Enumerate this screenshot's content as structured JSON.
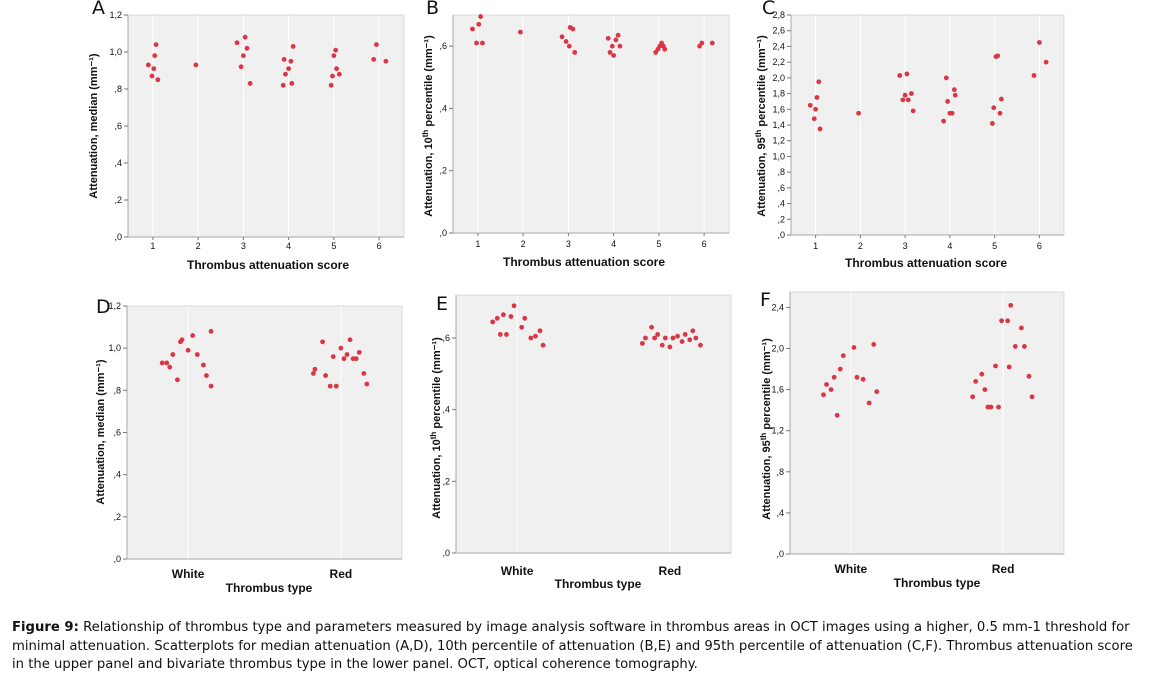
{
  "caption": {
    "label": "Figure 9:",
    "text": "Relationship of thrombus type and parameters measured by image analysis software in thrombus areas in OCT images using a higher, 0.5 mm-1 threshold for minimal attenuation. Scatterplots for median attenuation (A,D), 10th percentile of attenuation (B,E) and 95th percentile of attenuation (C,F). Thrombus attenuation score in the upper panel and bivariate thrombus type in the lower panel. OCT, optical coherence tomography."
  },
  "colors": {
    "point": "#dc3545",
    "plot_bg": "#f0f0f0",
    "axis": "#777777"
  },
  "chart_data": [
    {
      "panel": "A",
      "type": "scatter",
      "ylabel": "Attenuation, median (mm⁻¹)",
      "xlabel": "Thrombus attenuation score",
      "xcategories": [
        "1",
        "2",
        "3",
        "4",
        "5",
        "6"
      ],
      "xlim": [
        0.45,
        6.55
      ],
      "ylim": [
        0,
        1.2
      ],
      "yticks": [
        0,
        0.2,
        0.4,
        0.6,
        0.8,
        1.0,
        1.2
      ],
      "ytick_labels": [
        ",0",
        ",2",
        ",4",
        ",6",
        ",8",
        "1,0",
        "1,2"
      ],
      "points": [
        [
          0.9,
          0.93
        ],
        [
          0.98,
          0.87
        ],
        [
          1.02,
          0.91
        ],
        [
          1.04,
          0.98
        ],
        [
          1.07,
          1.04
        ],
        [
          1.11,
          0.85
        ],
        [
          1.95,
          0.93
        ],
        [
          2.86,
          1.05
        ],
        [
          2.95,
          0.92
        ],
        [
          3.0,
          0.98
        ],
        [
          3.04,
          1.08
        ],
        [
          3.08,
          1.02
        ],
        [
          3.15,
          0.83
        ],
        [
          3.88,
          0.82
        ],
        [
          3.9,
          0.96
        ],
        [
          3.93,
          0.88
        ],
        [
          4.0,
          0.91
        ],
        [
          4.05,
          0.95
        ],
        [
          4.07,
          0.83
        ],
        [
          4.1,
          1.03
        ],
        [
          4.94,
          0.82
        ],
        [
          4.97,
          0.87
        ],
        [
          5.0,
          0.98
        ],
        [
          5.04,
          1.01
        ],
        [
          5.06,
          0.91
        ],
        [
          5.12,
          0.88
        ],
        [
          5.88,
          0.96
        ],
        [
          5.94,
          1.04
        ],
        [
          6.15,
          0.95
        ]
      ]
    },
    {
      "panel": "B",
      "type": "scatter",
      "ylabel": "Attenuation, 10th percentile (mm⁻¹)",
      "xlabel": "Thrombus attenuation score",
      "xcategories": [
        "1",
        "2",
        "3",
        "4",
        "5",
        "6"
      ],
      "xlim": [
        0.45,
        6.55
      ],
      "ylim": [
        0,
        0.7
      ],
      "yticks": [
        0,
        0.2,
        0.4,
        0.6
      ],
      "ytick_labels": [
        ",0",
        ",2",
        ",4",
        ",6"
      ],
      "points": [
        [
          0.88,
          0.655
        ],
        [
          0.97,
          0.61
        ],
        [
          1.02,
          0.67
        ],
        [
          1.06,
          0.695
        ],
        [
          1.1,
          0.61
        ],
        [
          1.94,
          0.645
        ],
        [
          2.86,
          0.63
        ],
        [
          2.95,
          0.615
        ],
        [
          3.02,
          0.6
        ],
        [
          3.04,
          0.66
        ],
        [
          3.1,
          0.655
        ],
        [
          3.14,
          0.58
        ],
        [
          3.88,
          0.625
        ],
        [
          3.92,
          0.58
        ],
        [
          3.97,
          0.6
        ],
        [
          4.0,
          0.57
        ],
        [
          4.05,
          0.62
        ],
        [
          4.1,
          0.635
        ],
        [
          4.14,
          0.6
        ],
        [
          4.93,
          0.58
        ],
        [
          4.98,
          0.59
        ],
        [
          5.02,
          0.6
        ],
        [
          5.06,
          0.61
        ],
        [
          5.1,
          0.6
        ],
        [
          5.13,
          0.59
        ],
        [
          5.9,
          0.6
        ],
        [
          5.95,
          0.61
        ],
        [
          6.18,
          0.61
        ]
      ]
    },
    {
      "panel": "C",
      "type": "scatter",
      "ylabel": "Attenuation, 95th percentile (mm⁻¹)",
      "xlabel": "Thrombus attenuation score",
      "xcategories": [
        "1",
        "2",
        "3",
        "4",
        "5",
        "6"
      ],
      "xlim": [
        0.45,
        6.55
      ],
      "ylim": [
        0,
        2.8
      ],
      "yticks": [
        0,
        0.2,
        0.4,
        0.6,
        0.8,
        1.0,
        1.2,
        1.4,
        1.6,
        1.8,
        2.0,
        2.2,
        2.4,
        2.6,
        2.8
      ],
      "ytick_labels": [
        ",0",
        ",2",
        ",4",
        ",6",
        ",8",
        "1,0",
        "1,2",
        "1,4",
        "1,6",
        "1,8",
        "2,0",
        "2,2",
        "2,4",
        "2,6",
        "2,8"
      ],
      "points": [
        [
          0.88,
          1.65
        ],
        [
          0.97,
          1.48
        ],
        [
          1.0,
          1.6
        ],
        [
          1.03,
          1.75
        ],
        [
          1.07,
          1.95
        ],
        [
          1.1,
          1.35
        ],
        [
          1.96,
          1.55
        ],
        [
          2.88,
          2.03
        ],
        [
          2.95,
          1.72
        ],
        [
          3.0,
          1.78
        ],
        [
          3.04,
          2.05
        ],
        [
          3.07,
          1.72
        ],
        [
          3.14,
          1.8
        ],
        [
          3.18,
          1.58
        ],
        [
          3.86,
          1.45
        ],
        [
          3.92,
          2.0
        ],
        [
          3.95,
          1.7
        ],
        [
          4.0,
          1.55
        ],
        [
          4.05,
          1.55
        ],
        [
          4.1,
          1.85
        ],
        [
          4.12,
          1.78
        ],
        [
          4.95,
          1.42
        ],
        [
          4.98,
          1.62
        ],
        [
          5.03,
          2.27
        ],
        [
          5.07,
          2.28
        ],
        [
          5.12,
          1.55
        ],
        [
          5.15,
          1.73
        ],
        [
          5.88,
          2.03
        ],
        [
          6.0,
          2.45
        ],
        [
          6.15,
          2.2
        ]
      ]
    },
    {
      "panel": "D",
      "type": "scatter",
      "ylabel": "Attenuation, median (mm⁻¹)",
      "xlabel": "Thrombus type",
      "xcategories": [
        "White",
        "Red"
      ],
      "xlim": [
        0.6,
        2.4
      ],
      "ylim": [
        0,
        1.2
      ],
      "yticks": [
        0,
        0.2,
        0.4,
        0.6,
        0.8,
        1.0,
        1.2
      ],
      "ytick_labels": [
        ",0",
        ",2",
        ",4",
        ",6",
        ",8",
        "1,0",
        "1,2"
      ],
      "points": [
        [
          0.83,
          0.93
        ],
        [
          0.86,
          0.93
        ],
        [
          0.88,
          0.91
        ],
        [
          0.9,
          0.97
        ],
        [
          0.93,
          0.85
        ],
        [
          0.95,
          1.03
        ],
        [
          0.96,
          1.04
        ],
        [
          1.0,
          0.99
        ],
        [
          1.03,
          1.06
        ],
        [
          1.06,
          0.97
        ],
        [
          1.1,
          0.92
        ],
        [
          1.12,
          0.87
        ],
        [
          1.15,
          0.82
        ],
        [
          1.15,
          1.08
        ],
        [
          1.82,
          0.88
        ],
        [
          1.83,
          0.9
        ],
        [
          1.88,
          1.03
        ],
        [
          1.9,
          0.87
        ],
        [
          1.93,
          0.82
        ],
        [
          1.95,
          0.96
        ],
        [
          1.97,
          0.82
        ],
        [
          2.0,
          1.0
        ],
        [
          2.02,
          0.95
        ],
        [
          2.04,
          0.97
        ],
        [
          2.06,
          1.04
        ],
        [
          2.08,
          0.95
        ],
        [
          2.1,
          0.95
        ],
        [
          2.12,
          0.98
        ],
        [
          2.15,
          0.88
        ],
        [
          2.17,
          0.83
        ]
      ]
    },
    {
      "panel": "E",
      "type": "scatter",
      "ylabel": "Attenuation, 10th percentile (mm⁻¹)",
      "xlabel": "Thrombus type",
      "xcategories": [
        "White",
        "Red"
      ],
      "xlim": [
        0.6,
        2.4
      ],
      "ylim": [
        0,
        0.72
      ],
      "yticks": [
        0,
        0.2,
        0.4,
        0.6
      ],
      "ytick_labels": [
        ",0",
        ",2",
        ",4",
        ",6"
      ],
      "points": [
        [
          0.84,
          0.645
        ],
        [
          0.87,
          0.655
        ],
        [
          0.89,
          0.61
        ],
        [
          0.91,
          0.665
        ],
        [
          0.93,
          0.61
        ],
        [
          0.96,
          0.66
        ],
        [
          0.98,
          0.69
        ],
        [
          1.03,
          0.63
        ],
        [
          1.05,
          0.655
        ],
        [
          1.09,
          0.6
        ],
        [
          1.12,
          0.605
        ],
        [
          1.15,
          0.62
        ],
        [
          1.17,
          0.58
        ],
        [
          1.82,
          0.585
        ],
        [
          1.84,
          0.6
        ],
        [
          1.88,
          0.63
        ],
        [
          1.9,
          0.6
        ],
        [
          1.92,
          0.61
        ],
        [
          1.95,
          0.58
        ],
        [
          1.97,
          0.6
        ],
        [
          2.0,
          0.575
        ],
        [
          2.02,
          0.6
        ],
        [
          2.05,
          0.605
        ],
        [
          2.08,
          0.59
        ],
        [
          2.1,
          0.61
        ],
        [
          2.13,
          0.595
        ],
        [
          2.15,
          0.62
        ],
        [
          2.17,
          0.6
        ],
        [
          2.2,
          0.58
        ]
      ]
    },
    {
      "panel": "F",
      "type": "scatter",
      "ylabel": "Attenuation, 95th percentile (mm⁻¹)",
      "xlabel": "Thrombus type",
      "xcategories": [
        "White",
        "Red"
      ],
      "xlim": [
        0.6,
        2.4
      ],
      "ylim": [
        0,
        2.55
      ],
      "yticks": [
        0,
        0.4,
        0.8,
        1.2,
        1.6,
        2.0,
        2.4
      ],
      "ytick_labels": [
        ",0",
        ",4",
        ",8",
        "1,2",
        "1,6",
        "2,0",
        "2,4"
      ],
      "points": [
        [
          0.82,
          1.55
        ],
        [
          0.84,
          1.65
        ],
        [
          0.87,
          1.6
        ],
        [
          0.89,
          1.72
        ],
        [
          0.91,
          1.35
        ],
        [
          0.93,
          1.8
        ],
        [
          0.95,
          1.93
        ],
        [
          1.02,
          2.01
        ],
        [
          1.04,
          1.72
        ],
        [
          1.08,
          1.7
        ],
        [
          1.12,
          1.47
        ],
        [
          1.15,
          2.04
        ],
        [
          1.17,
          1.58
        ],
        [
          1.8,
          1.53
        ],
        [
          1.82,
          1.68
        ],
        [
          1.86,
          1.75
        ],
        [
          1.88,
          1.6
        ],
        [
          1.9,
          1.43
        ],
        [
          1.92,
          1.43
        ],
        [
          1.95,
          1.83
        ],
        [
          1.97,
          1.43
        ],
        [
          1.99,
          2.27
        ],
        [
          2.03,
          2.27
        ],
        [
          2.04,
          1.82
        ],
        [
          2.05,
          2.42
        ],
        [
          2.08,
          2.02
        ],
        [
          2.12,
          2.2
        ],
        [
          2.14,
          2.02
        ],
        [
          2.17,
          1.73
        ],
        [
          2.19,
          1.53
        ]
      ]
    }
  ]
}
